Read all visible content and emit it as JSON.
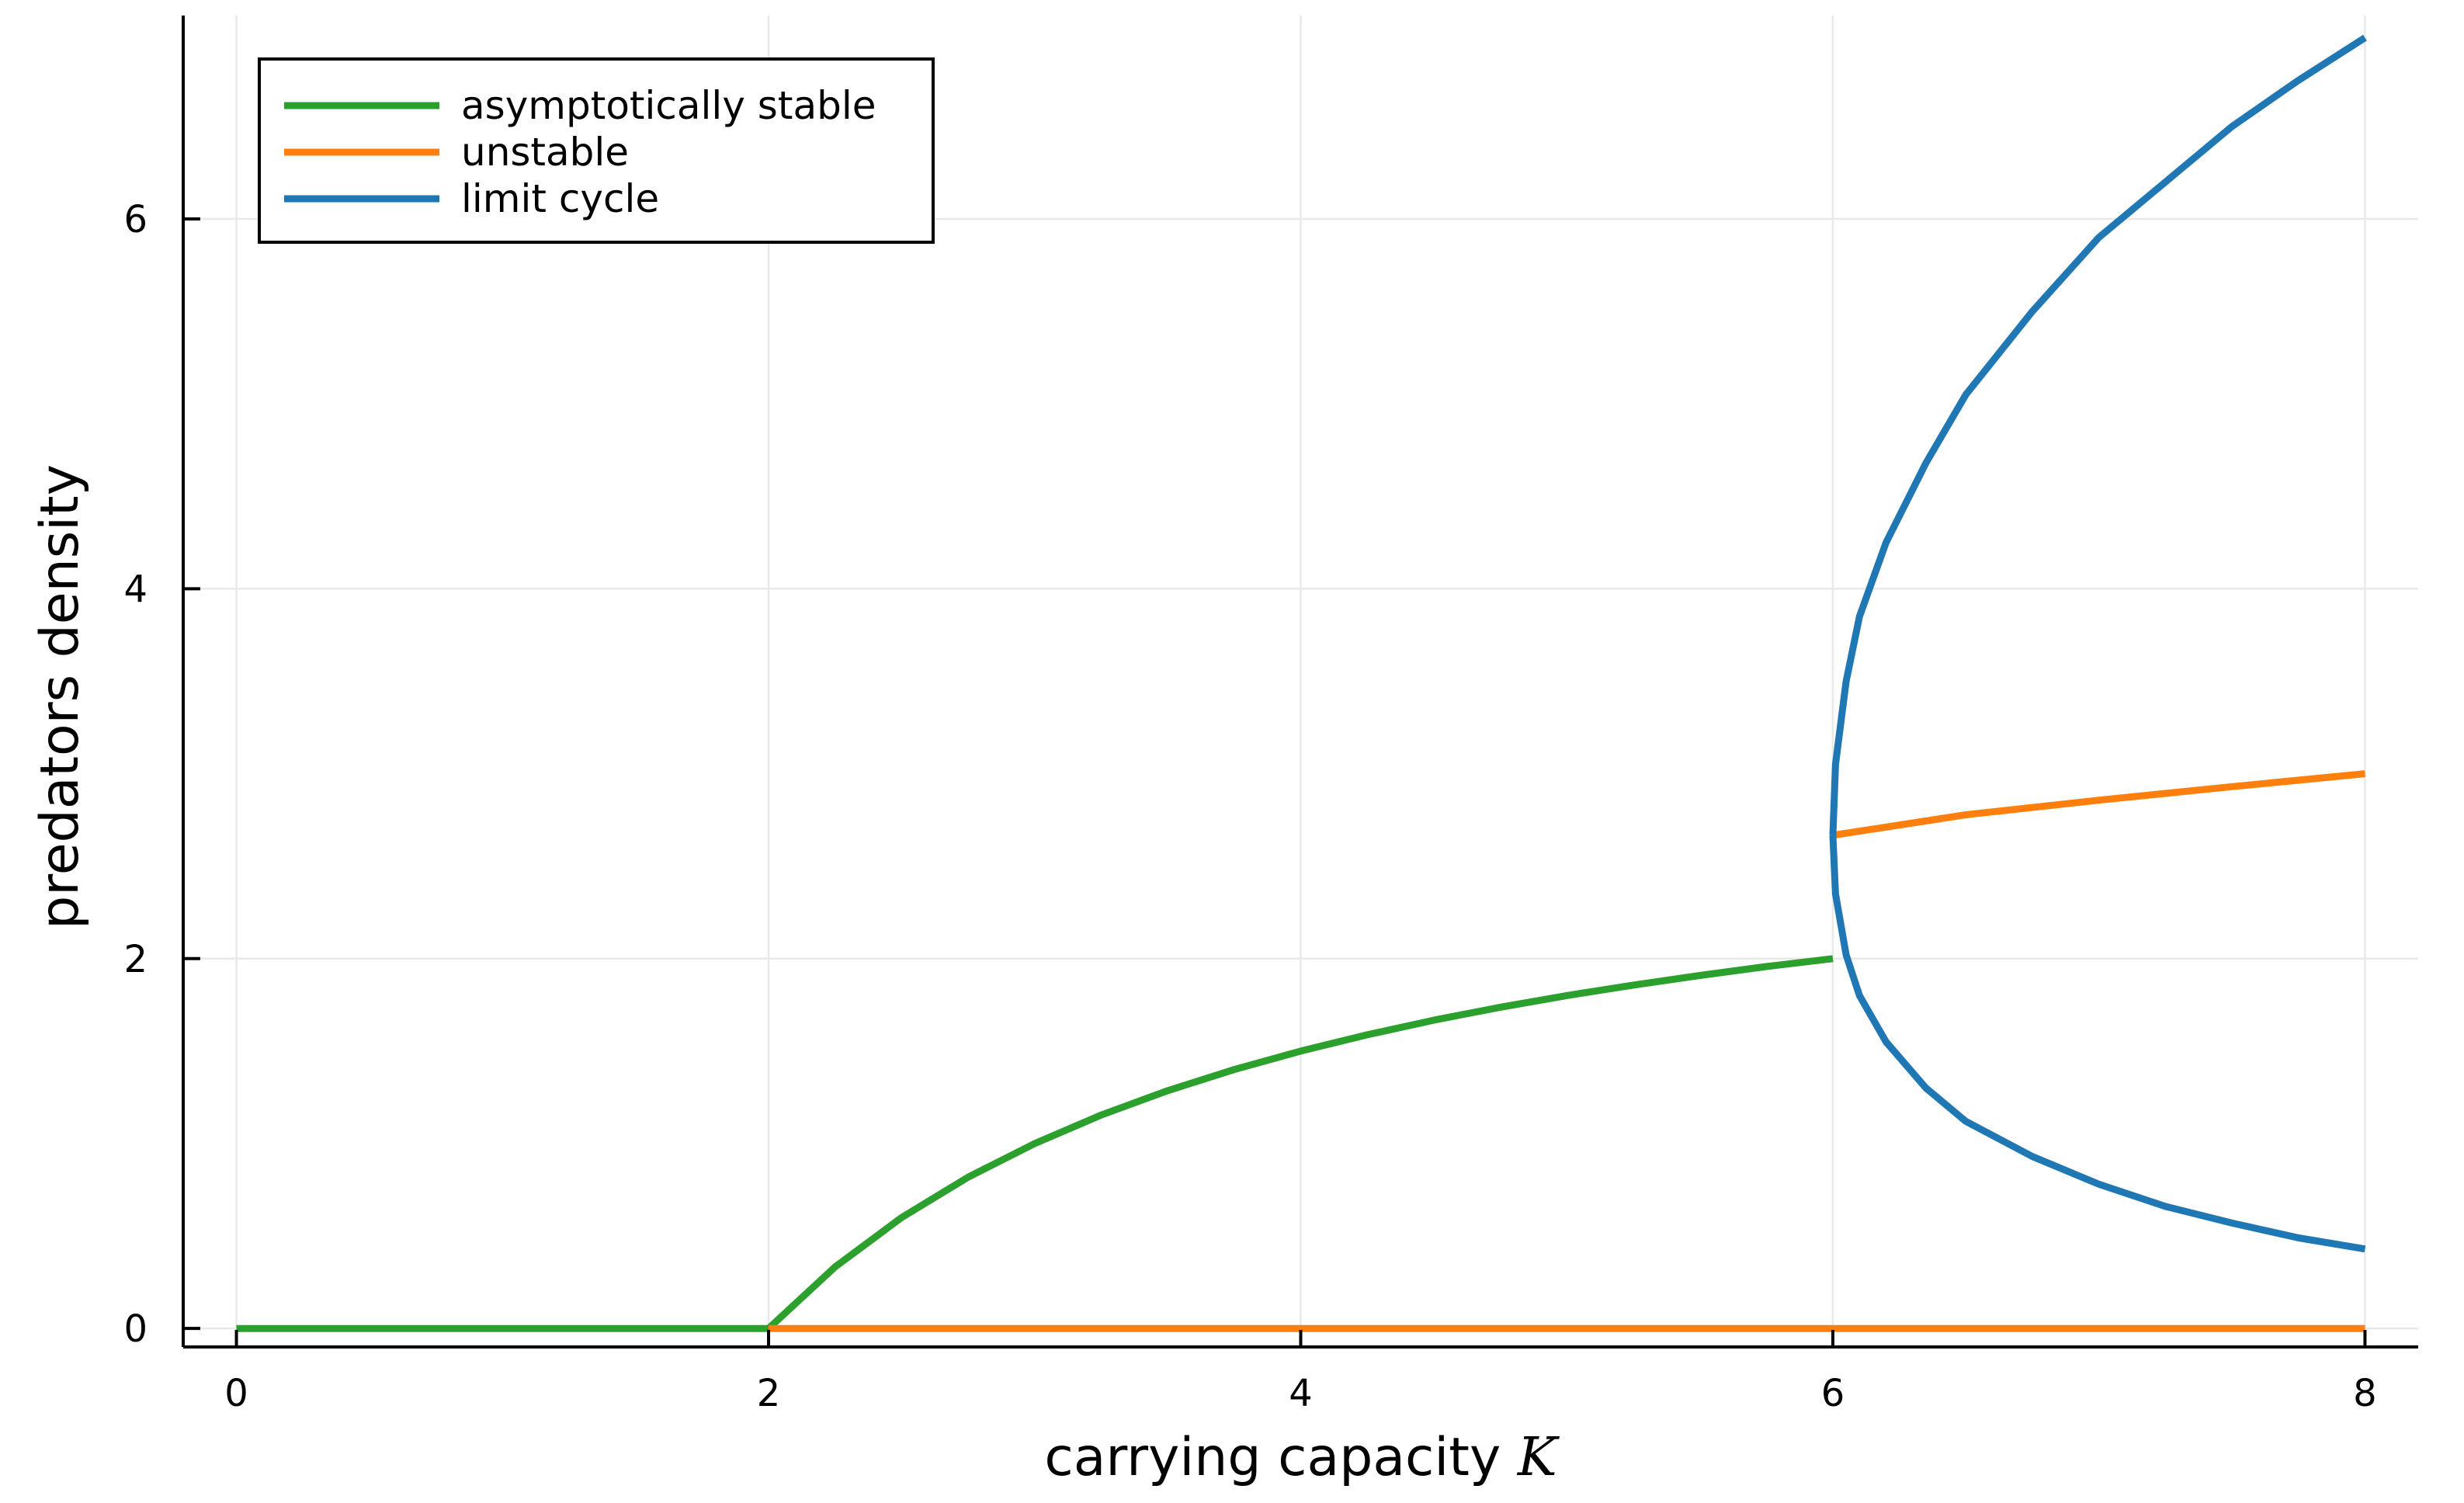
{
  "chart_data": {
    "type": "line",
    "title": "",
    "xlabel": "carrying capacity",
    "xlabel_symbol": "K",
    "ylabel": "predators density",
    "xlim": [
      -0.2,
      8.2
    ],
    "ylim": [
      -0.1,
      7.1
    ],
    "xticks": [
      0,
      2,
      4,
      6,
      8
    ],
    "xtick_labels": [
      "0",
      "2",
      "4",
      "6",
      "8"
    ],
    "yticks": [
      0,
      2,
      4,
      6
    ],
    "ytick_labels": [
      "0",
      "2",
      "4",
      "6"
    ],
    "grid": true,
    "legend_position": "top-left",
    "legend": [
      {
        "label": "asymptotically stable",
        "color": "#2ca02c"
      },
      {
        "label": "unstable",
        "color": "#ff7f0e"
      },
      {
        "label": "limit cycle",
        "color": "#1f77b4"
      }
    ],
    "series": [
      {
        "name": "asymptotically stable",
        "color": "#2ca02c",
        "segments": [
          {
            "x": [
              0,
              2
            ],
            "y": [
              0,
              0
            ]
          },
          {
            "x": [
              2,
              2.25,
              2.5,
              2.75,
              3,
              3.25,
              3.5,
              3.75,
              4,
              4.25,
              4.5,
              4.75,
              5,
              5.25,
              5.5,
              5.75,
              6
            ],
            "y": [
              0,
              0.333,
              0.6,
              0.818,
              1.0,
              1.154,
              1.286,
              1.4,
              1.5,
              1.588,
              1.667,
              1.737,
              1.8,
              1.857,
              1.909,
              1.957,
              2.0
            ]
          }
        ]
      },
      {
        "name": "unstable",
        "color": "#ff7f0e",
        "segments": [
          {
            "x": [
              2,
              8
            ],
            "y": [
              0,
              0
            ]
          },
          {
            "x": [
              6,
              6.5,
              7,
              7.5,
              8
            ],
            "y": [
              2.667,
              2.778,
              2.857,
              2.93,
              3.0
            ]
          }
        ]
      },
      {
        "name": "limit cycle",
        "color": "#1f77b4",
        "segments": [
          {
            "x": [
              6,
              6.01,
              6.05,
              6.1,
              6.2,
              6.35,
              6.5,
              6.75,
              7,
              7.25,
              7.5,
              7.75,
              8
            ],
            "y": [
              2.667,
              3.05,
              3.5,
              3.85,
              4.25,
              4.68,
              5.05,
              5.5,
              5.9,
              6.2,
              6.5,
              6.75,
              6.98
            ]
          },
          {
            "x": [
              6,
              6.01,
              6.05,
              6.1,
              6.2,
              6.35,
              6.5,
              6.75,
              7,
              7.25,
              7.5,
              7.75,
              8
            ],
            "y": [
              2.667,
              2.35,
              2.02,
              1.8,
              1.55,
              1.3,
              1.12,
              0.93,
              0.78,
              0.66,
              0.57,
              0.49,
              0.43
            ]
          }
        ]
      }
    ]
  }
}
